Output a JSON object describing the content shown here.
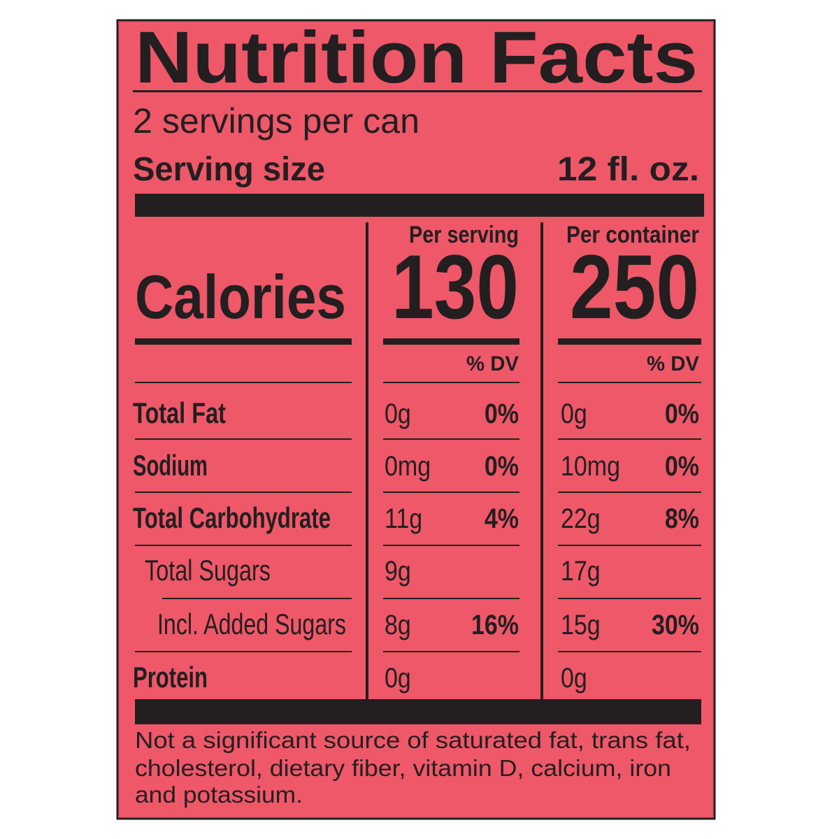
{
  "title": "Nutrition Facts",
  "servings_per_container": "2 servings per can",
  "serving_size": {
    "label": "Serving size",
    "value": "12 fl. oz."
  },
  "columns": [
    "Per serving",
    "Per container"
  ],
  "calories": {
    "label": "Calories",
    "values": [
      "130",
      "250"
    ]
  },
  "dv_header": [
    "% DV",
    "% DV"
  ],
  "rows": [
    {
      "name": "Total Fat",
      "values": [
        {
          "amount": "0g",
          "dv": "0%"
        },
        {
          "amount": "0g",
          "dv": "0%"
        }
      ]
    },
    {
      "name": "Sodium",
      "values": [
        {
          "amount": "0mg",
          "dv": "0%"
        },
        {
          "amount": "10mg",
          "dv": "0%"
        }
      ]
    },
    {
      "name": "Total Carbohydrate",
      "values": [
        {
          "amount": "11g",
          "dv": "4%"
        },
        {
          "amount": "22g",
          "dv": "8%"
        }
      ]
    },
    {
      "name": "Total Sugars",
      "values": [
        {
          "amount": "9g"
        },
        {
          "amount": "17g"
        }
      ]
    },
    {
      "name": "Incl. Added Sugars",
      "values": [
        {
          "amount": "8g",
          "dv": "16%"
        },
        {
          "amount": "15g",
          "dv": "30%"
        }
      ]
    },
    {
      "name": "Protein",
      "values": [
        {
          "amount": "0g"
        },
        {
          "amount": "0g"
        }
      ]
    }
  ],
  "footnote": [
    "Not a significant source of saturated fat, trans fat,",
    "cholesterol, dietary fiber, vitamin D, calcium, iron",
    "and potassium."
  ]
}
